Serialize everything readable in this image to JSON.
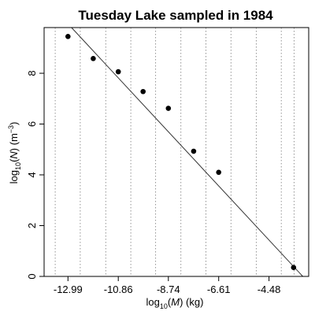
{
  "chart_data": {
    "type": "scatter",
    "title": "Tuesday Lake sampled in 1984",
    "xlabel_parts": [
      "log",
      "10",
      "(",
      "M",
      ") (kg)"
    ],
    "ylabel_parts": [
      "log",
      "10",
      "(",
      "N",
      ") (m",
      "−3",
      ")"
    ],
    "xlim": [
      -14.0,
      -2.8
    ],
    "ylim": [
      0.0,
      9.8
    ],
    "x_ticks": [
      -12.99,
      -10.86,
      -8.74,
      -6.61,
      -4.48
    ],
    "x_tick_labels": [
      "-12.99",
      "-10.86",
      "-8.74",
      "-6.61",
      "-4.48"
    ],
    "y_ticks": [
      0,
      2,
      4,
      6,
      8
    ],
    "y_tick_labels": [
      "0",
      "2",
      "4",
      "6",
      "8"
    ],
    "vertical_gridlines": [
      -13.53,
      -12.47,
      -11.39,
      -10.33,
      -9.28,
      -8.21,
      -7.15,
      -6.09,
      -5.02,
      -3.96,
      -3.42
    ],
    "points": [
      {
        "x": -12.99,
        "y": 9.45
      },
      {
        "x": -11.92,
        "y": 8.58
      },
      {
        "x": -10.86,
        "y": 8.06
      },
      {
        "x": -9.81,
        "y": 7.28
      },
      {
        "x": -8.74,
        "y": 6.62
      },
      {
        "x": -7.67,
        "y": 4.93
      },
      {
        "x": -6.61,
        "y": 4.1
      },
      {
        "x": -3.44,
        "y": 0.35
      }
    ],
    "fit_line": {
      "x": [
        -12.84,
        -3.05
      ],
      "y": [
        9.8,
        0.0
      ]
    },
    "grid": "vertical dotted lines",
    "legend": "none"
  }
}
